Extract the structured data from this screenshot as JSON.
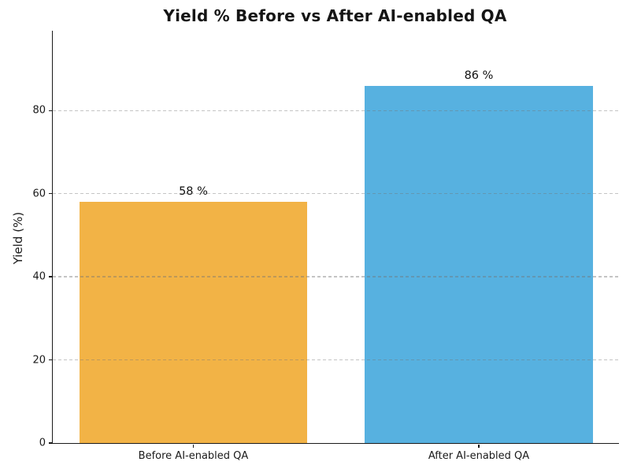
{
  "chart_data": {
    "type": "bar",
    "title": "Yield % Before vs After AI-enabled QA",
    "ylabel": "Yield (%)",
    "xlabel": "",
    "categories": [
      "Before AI-enabled QA",
      "After AI-enabled QA"
    ],
    "values": [
      58,
      86
    ],
    "value_labels": [
      "58 %",
      "86 %"
    ],
    "bar_colors": [
      "#F2B346",
      "#57B1E0"
    ],
    "yticks": [
      0,
      20,
      40,
      60,
      80
    ],
    "ylim": [
      0,
      99.2
    ],
    "grid": {
      "axis": "y",
      "style": "dashed",
      "color": "#CCCCCC"
    },
    "spine_color": "#1A1A1A",
    "background": "#FFFFFF",
    "legend": null
  }
}
